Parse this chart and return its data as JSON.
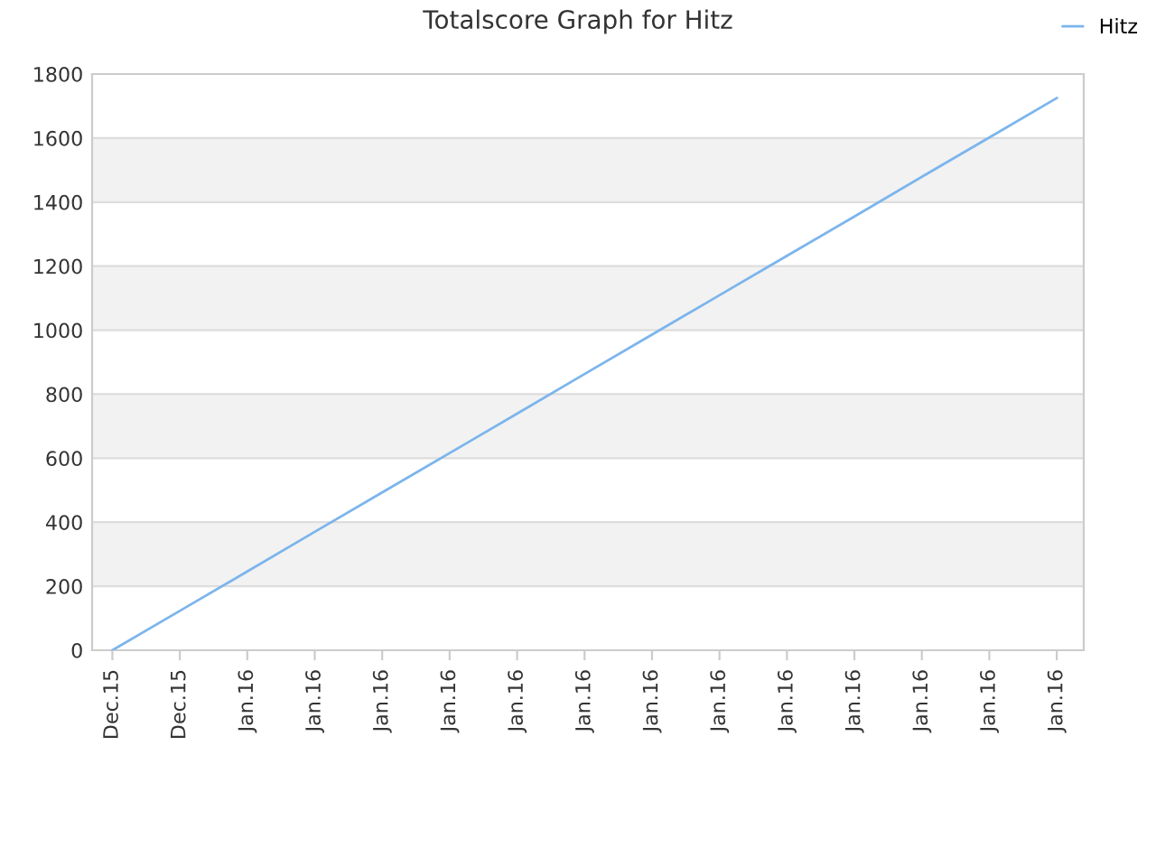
{
  "chart_data": {
    "type": "line",
    "title": "Totalscore Graph for Hitz",
    "categories": [
      "Dec.15",
      "Dec.15",
      "Jan.16",
      "Jan.16",
      "Jan.16",
      "Jan.16",
      "Jan.16",
      "Jan.16",
      "Jan.16",
      "Jan.16",
      "Jan.16",
      "Jan.16",
      "Jan.16",
      "Jan.16",
      "Jan.16"
    ],
    "series": [
      {
        "name": "Hitz",
        "color": "#7cb5ec",
        "values": [
          0,
          123,
          246,
          370,
          493,
          616,
          739,
          863,
          986,
          1109,
          1232,
          1355,
          1479,
          1602,
          1725
        ]
      }
    ],
    "ylim": [
      0,
      1800
    ],
    "yticks": [
      0,
      200,
      400,
      600,
      800,
      1000,
      1200,
      1400,
      1600,
      1800
    ],
    "bands": [
      {
        "axis": "y",
        "from": 200,
        "to": 400,
        "color": "#f2f2f2"
      },
      {
        "axis": "y",
        "from": 600,
        "to": 800,
        "color": "#f2f2f2"
      },
      {
        "axis": "y",
        "from": 1000,
        "to": 1200,
        "color": "#f2f2f2"
      },
      {
        "axis": "y",
        "from": 1400,
        "to": 1600,
        "color": "#f2f2f2"
      }
    ],
    "grid": "y",
    "legend": "top right",
    "marker": "none",
    "line_style": "solid"
  }
}
